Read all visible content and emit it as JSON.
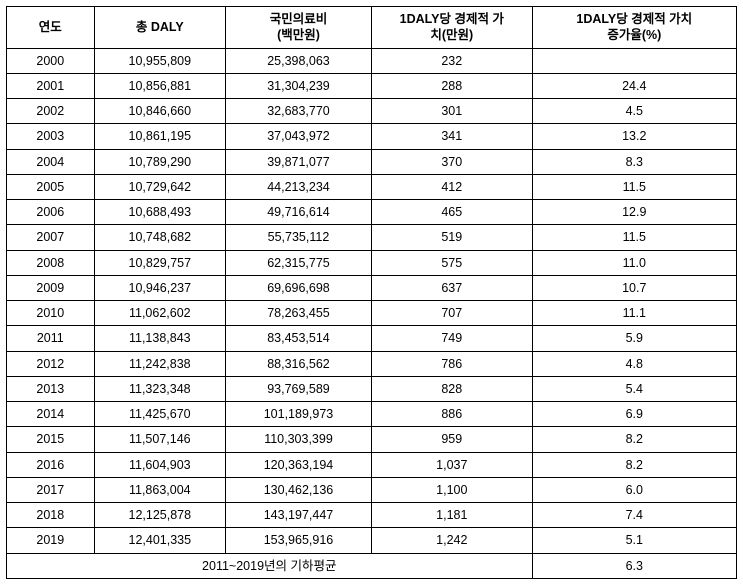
{
  "table": {
    "columns": [
      "연도",
      "총 DALY",
      "국민의료비\n(백만원)",
      "1DALY당 경제적 가\n치(만원)",
      "1DALY당 경제적 가치\n증가율(%)"
    ],
    "rows": [
      [
        "2000",
        "10,955,809",
        "25,398,063",
        "232",
        ""
      ],
      [
        "2001",
        "10,856,881",
        "31,304,239",
        "288",
        "24.4"
      ],
      [
        "2002",
        "10,846,660",
        "32,683,770",
        "301",
        "4.5"
      ],
      [
        "2003",
        "10,861,195",
        "37,043,972",
        "341",
        "13.2"
      ],
      [
        "2004",
        "10,789,290",
        "39,871,077",
        "370",
        "8.3"
      ],
      [
        "2005",
        "10,729,642",
        "44,213,234",
        "412",
        "11.5"
      ],
      [
        "2006",
        "10,688,493",
        "49,716,614",
        "465",
        "12.9"
      ],
      [
        "2007",
        "10,748,682",
        "55,735,112",
        "519",
        "11.5"
      ],
      [
        "2008",
        "10,829,757",
        "62,315,775",
        "575",
        "11.0"
      ],
      [
        "2009",
        "10,946,237",
        "69,696,698",
        "637",
        "10.7"
      ],
      [
        "2010",
        "11,062,602",
        "78,263,455",
        "707",
        "11.1"
      ],
      [
        "2011",
        "11,138,843",
        "83,453,514",
        "749",
        "5.9"
      ],
      [
        "2012",
        "11,242,838",
        "88,316,562",
        "786",
        "4.8"
      ],
      [
        "2013",
        "11,323,348",
        "93,769,589",
        "828",
        "5.4"
      ],
      [
        "2014",
        "11,425,670",
        "101,189,973",
        "886",
        "6.9"
      ],
      [
        "2015",
        "11,507,146",
        "110,303,399",
        "959",
        "8.2"
      ],
      [
        "2016",
        "11,604,903",
        "120,363,194",
        "1,037",
        "8.2"
      ],
      [
        "2017",
        "11,863,004",
        "130,462,136",
        "1,100",
        "6.0"
      ],
      [
        "2018",
        "12,125,878",
        "143,197,447",
        "1,181",
        "7.4"
      ],
      [
        "2019",
        "12,401,335",
        "153,965,916",
        "1,242",
        "5.1"
      ]
    ],
    "footer": {
      "label": "2011~2019년의 기하평균",
      "value": "6.3"
    }
  }
}
